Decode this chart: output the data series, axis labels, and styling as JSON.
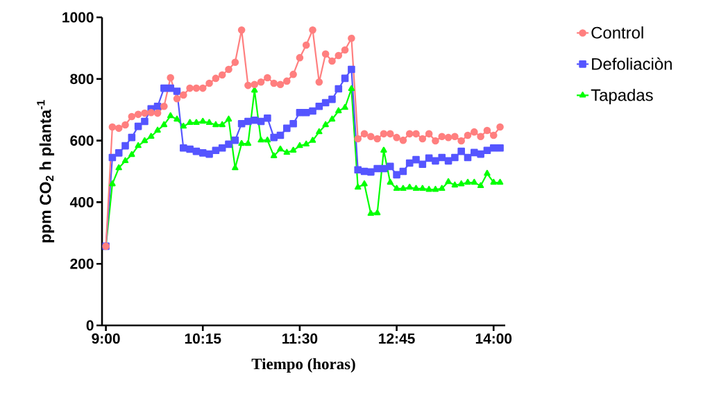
{
  "chart_data": {
    "type": "line",
    "xlabel": "Tiempo (horas)",
    "ylabel": "ppm CO$_{2}$ h planta$^{-1}$",
    "x": [
      9,
      9.0833,
      9.1667,
      9.25,
      9.3333,
      9.4167,
      9.5,
      9.5833,
      9.6667,
      9.75,
      9.8333,
      9.9167,
      10,
      10.0833,
      10.1667,
      10.25,
      10.3333,
      10.4167,
      10.5,
      10.5833,
      10.6667,
      10.75,
      10.8333,
      10.9167,
      11,
      11.0833,
      11.1667,
      11.25,
      11.3333,
      11.4167,
      11.5,
      11.5833,
      11.6667,
      11.75,
      11.8333,
      11.9167,
      12,
      12.0833,
      12.1667,
      12.25,
      12.3333,
      12.4167,
      12.5,
      12.5833,
      12.6667,
      12.75,
      12.8333,
      12.9167,
      13,
      13.0833,
      13.1667,
      13.25,
      13.3333,
      13.4167,
      13.5,
      13.5833,
      13.6667,
      13.75,
      13.8333,
      13.9167,
      14,
      14.0833
    ],
    "series": [
      {
        "name": "Control",
        "color": "#ff7f7f",
        "marker": "circle",
        "values": [
          257,
          644,
          640,
          651,
          678,
          685,
          689,
          691,
          689,
          711,
          804,
          736,
          748,
          770,
          770,
          770,
          786,
          802,
          813,
          831,
          854,
          959,
          779,
          782,
          790,
          804,
          786,
          782,
          793,
          815,
          869,
          910,
          959,
          790,
          881,
          858,
          876,
          894,
          932,
          606,
          622,
          613,
          606,
          622,
          622,
          610,
          601,
          622,
          622,
          606,
          622,
          599,
          613,
          610,
          613,
          599,
          617,
          628,
          613,
          633,
          617,
          644
        ]
      },
      {
        "name": "Defoliaciòn",
        "color": "#5555ff",
        "marker": "square",
        "values": [
          257,
          545,
          560,
          583,
          610,
          646,
          662,
          703,
          711,
          770,
          770,
          760,
          576,
          572,
          565,
          560,
          556,
          568,
          576,
          588,
          601,
          655,
          662,
          666,
          662,
          673,
          610,
          617,
          640,
          655,
          691,
          691,
          696,
          711,
          723,
          734,
          768,
          802,
          831,
          505,
          500,
          498,
          509,
          509,
          516,
          489,
          500,
          527,
          538,
          523,
          543,
          534,
          545,
          534,
          545,
          565,
          545,
          561,
          556,
          568,
          576,
          576
        ]
      },
      {
        "name": "Tapadas",
        "color": "#00ff00",
        "marker": "triangle",
        "values": [
          257,
          459,
          511,
          534,
          554,
          583,
          599,
          613,
          633,
          651,
          680,
          669,
          646,
          658,
          658,
          662,
          658,
          651,
          651,
          669,
          511,
          590,
          590,
          763,
          601,
          601,
          550,
          572,
          561,
          568,
          583,
          588,
          600,
          628,
          651,
          669,
          696,
          707,
          768,
          448,
          459,
          363,
          365,
          568,
          464,
          444,
          444,
          448,
          444,
          444,
          441,
          441,
          444,
          466,
          455,
          459,
          464,
          464,
          453,
          493,
          464,
          464
        ]
      }
    ],
    "xlim": [
      8.95,
      14.15
    ],
    "xticks": [
      {
        "value": 9,
        "label": "9:00"
      },
      {
        "value": 10.25,
        "label": "10:15"
      },
      {
        "value": 11.5,
        "label": "11:30"
      },
      {
        "value": 12.75,
        "label": "12:45"
      },
      {
        "value": 14,
        "label": "14:00"
      }
    ],
    "ylim": [
      0,
      1000
    ],
    "yticks": [
      0,
      200,
      400,
      600,
      800,
      1000
    ],
    "legend": "right",
    "grid": false,
    "line_style": "solid"
  }
}
